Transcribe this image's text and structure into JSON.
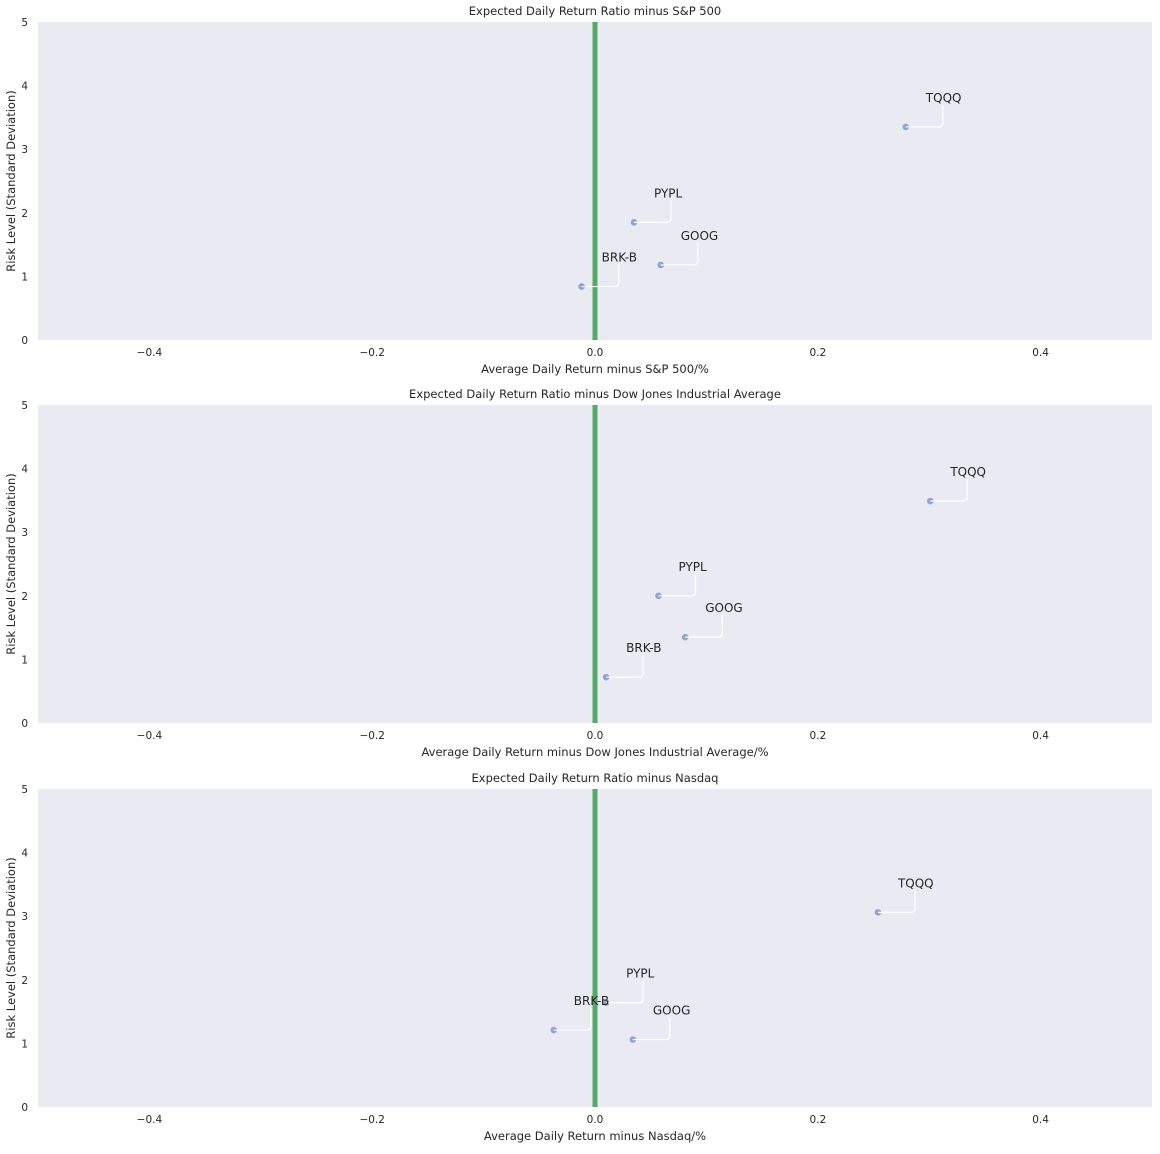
{
  "chart_data": [
    {
      "type": "scatter",
      "title": "Expected Daily Return Ratio minus S&P 500",
      "xlabel": "Average Daily Return minus S&P 500/%",
      "ylabel": "Risk Level (Standard Deviation)",
      "xlim": [
        -0.5,
        0.5
      ],
      "ylim": [
        0,
        5
      ],
      "xticks": [
        -0.4,
        -0.2,
        0.0,
        0.2,
        0.4
      ],
      "xtick_labels": [
        "−0.4",
        "−0.2",
        "0.0",
        "0.2",
        "0.4"
      ],
      "yticks": [
        0,
        1,
        2,
        3,
        4,
        5
      ],
      "ytick_labels": [
        "0",
        "1",
        "2",
        "3",
        "4",
        "5"
      ],
      "vline_x": 0.0,
      "grid": false,
      "points": [
        {
          "label": "TQQQ",
          "x": 0.279,
          "y": 3.35
        },
        {
          "label": "PYPL",
          "x": 0.035,
          "y": 1.85
        },
        {
          "label": "GOOG",
          "x": 0.059,
          "y": 1.18
        },
        {
          "label": "BRK-B",
          "x": -0.012,
          "y": 0.84
        }
      ]
    },
    {
      "type": "scatter",
      "title": "Expected Daily Return Ratio minus Dow Jones Industrial Average",
      "xlabel": "Average Daily Return minus Dow Jones Industrial Average/%",
      "ylabel": "Risk Level (Standard Deviation)",
      "xlim": [
        -0.5,
        0.5
      ],
      "ylim": [
        0,
        5
      ],
      "xticks": [
        -0.4,
        -0.2,
        0.0,
        0.2,
        0.4
      ],
      "xtick_labels": [
        "−0.4",
        "−0.2",
        "0.0",
        "0.2",
        "0.4"
      ],
      "yticks": [
        0,
        1,
        2,
        3,
        4,
        5
      ],
      "ytick_labels": [
        "0",
        "1",
        "2",
        "3",
        "4",
        "5"
      ],
      "vline_x": 0.0,
      "grid": false,
      "points": [
        {
          "label": "TQQQ",
          "x": 0.301,
          "y": 3.49
        },
        {
          "label": "PYPL",
          "x": 0.057,
          "y": 2.0
        },
        {
          "label": "GOOG",
          "x": 0.081,
          "y": 1.35
        },
        {
          "label": "BRK-B",
          "x": 0.01,
          "y": 0.72
        }
      ]
    },
    {
      "type": "scatter",
      "title": "Expected Daily Return Ratio minus Nasdaq",
      "xlabel": "Average Daily Return minus Nasdaq/%",
      "ylabel": "Risk Level (Standard Deviation)",
      "xlim": [
        -0.5,
        0.5
      ],
      "ylim": [
        0,
        5
      ],
      "xticks": [
        -0.4,
        -0.2,
        0.0,
        0.2,
        0.4
      ],
      "xtick_labels": [
        "−0.4",
        "−0.2",
        "0.0",
        "0.2",
        "0.4"
      ],
      "yticks": [
        0,
        1,
        2,
        3,
        4,
        5
      ],
      "ytick_labels": [
        "0",
        "1",
        "2",
        "3",
        "4",
        "5"
      ],
      "vline_x": 0.0,
      "grid": false,
      "points": [
        {
          "label": "TQQQ",
          "x": 0.254,
          "y": 3.06
        },
        {
          "label": "PYPL",
          "x": 0.01,
          "y": 1.64
        },
        {
          "label": "GOOG",
          "x": 0.034,
          "y": 1.06
        },
        {
          "label": "BRK-B",
          "x": -0.037,
          "y": 1.21
        }
      ]
    }
  ],
  "colors": {
    "plot_background": "#eaeaf2",
    "point": "#8fa6d1",
    "vline": "#55a868",
    "annotation_line": "#ffffff",
    "text": "#262626"
  }
}
